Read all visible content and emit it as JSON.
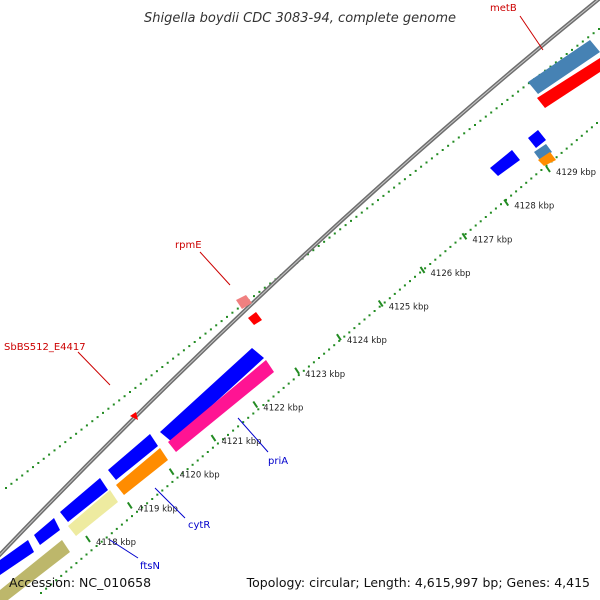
{
  "title": "Shigella boydii CDC 3083-94, complete genome",
  "accession_text": "Accession: NC_010658",
  "summary_text": "Topology: circular; Length: 4,615,997 bp; Genes: 4,415",
  "ticks": [
    {
      "label": "4118 kbp",
      "faded": true
    },
    {
      "label": "4119 kbp"
    },
    {
      "label": "4120 kbp"
    },
    {
      "label": "4121 kbp"
    },
    {
      "label": "4122 kbp"
    },
    {
      "label": "4123 kbp"
    },
    {
      "label": "4124 kbp"
    },
    {
      "label": "4125 kbp"
    },
    {
      "label": "4126 kbp"
    },
    {
      "label": "4127 kbp"
    },
    {
      "label": "4128 kbp"
    },
    {
      "label": "4129 kbp"
    }
  ],
  "gene_labels": [
    {
      "name": "metB",
      "color": "#cc0000"
    },
    {
      "name": "rpmE",
      "color": "#cc0000"
    },
    {
      "name": "SbBS512_E4417",
      "color": "#cc0000"
    },
    {
      "name": "priA",
      "color": "#0000cc"
    },
    {
      "name": "cytR",
      "color": "#0000cc"
    },
    {
      "name": "ftsN",
      "color": "#0000cc"
    }
  ],
  "colors": {
    "backbone": "#7f7f7f",
    "cds_forward": "#0000ff",
    "cds_reverse": "#0000ff",
    "rrna_like": "#ff1493",
    "orange_gene": "#ff8c00",
    "khaki_gene": "#eeeba0",
    "steelblue_gene": "#4682b4",
    "red_gene": "#ff0000",
    "pink_gene": "#f08080",
    "gc_dots": "#228b22"
  }
}
